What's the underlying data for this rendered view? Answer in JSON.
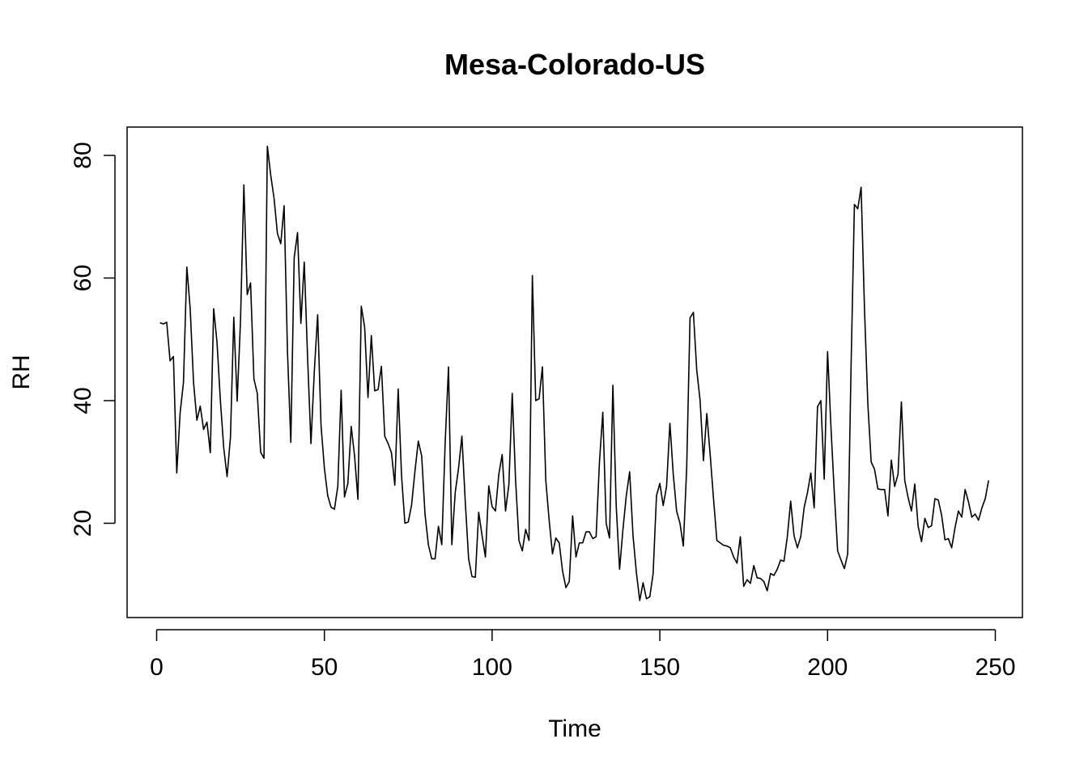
{
  "chart_data": {
    "type": "line",
    "title": "Mesa-Colorado-US",
    "xlabel": "Time",
    "ylabel": "RH",
    "xlim": [
      1,
      248
    ],
    "ylim": [
      7.4,
      81.5
    ],
    "xticks": [
      0,
      50,
      100,
      150,
      200,
      250
    ],
    "yticks": [
      20,
      40,
      60,
      80
    ],
    "grid": false,
    "line_color": "#000000",
    "series": [
      {
        "x": [
          1,
          2,
          3,
          4,
          5,
          6,
          7,
          8,
          9,
          10,
          11,
          12,
          13,
          14,
          15,
          16,
          17,
          18,
          19,
          20,
          21,
          22,
          23,
          24,
          25,
          26,
          27,
          28,
          29,
          30,
          31,
          32,
          33,
          34,
          35,
          36,
          37,
          38,
          39,
          40,
          41,
          42,
          43,
          44,
          45,
          46,
          47,
          48,
          49,
          50,
          51,
          52,
          53,
          54,
          55,
          56,
          57,
          58,
          59,
          60,
          61,
          62,
          63,
          64,
          65,
          66,
          67,
          68,
          69,
          70,
          71,
          72,
          73,
          74,
          75,
          76,
          77,
          78,
          79,
          80,
          81,
          82,
          83,
          84,
          85,
          86,
          87,
          88,
          89,
          90,
          91,
          92,
          93,
          94,
          95,
          96,
          97,
          98,
          99,
          100,
          101,
          102,
          103,
          104,
          105,
          106,
          107,
          108,
          109,
          110,
          111,
          112,
          113,
          114,
          115,
          116,
          117,
          118,
          119,
          120,
          121,
          122,
          123,
          124,
          125,
          126,
          127,
          128,
          129,
          130,
          131,
          132,
          133,
          134,
          135,
          136,
          137,
          138,
          139,
          140,
          141,
          142,
          143,
          144,
          145,
          146,
          147,
          148,
          149,
          150,
          151,
          152,
          153,
          154,
          155,
          156,
          157,
          158,
          159,
          160,
          161,
          162,
          163,
          164,
          165,
          166,
          167,
          168,
          169,
          170,
          171,
          172,
          173,
          174,
          175,
          176,
          177,
          178,
          179,
          180,
          181,
          182,
          183,
          184,
          185,
          186,
          187,
          188,
          189,
          190,
          191,
          192,
          193,
          194,
          195,
          196,
          197,
          198,
          199,
          200,
          201,
          202,
          203,
          204,
          205,
          206,
          207,
          208,
          209,
          210,
          211,
          212,
          213,
          214,
          215,
          216,
          217,
          218,
          219,
          220,
          221,
          222,
          223,
          224,
          225,
          226,
          227,
          228,
          229,
          230,
          231,
          232,
          233,
          234,
          235,
          236,
          237,
          238,
          239,
          240,
          241,
          242,
          243,
          244,
          245,
          246,
          247,
          248
        ],
        "values": [
          52.7,
          52.5,
          52.8,
          46.5,
          47.2,
          28.2,
          38.0,
          43.0,
          61.8,
          55.0,
          43.0,
          36.8,
          39.1,
          35.3,
          36.5,
          31.5,
          55.0,
          49.5,
          40.0,
          32.3,
          27.6,
          34.0,
          53.6,
          39.9,
          53.0,
          75.2,
          57.3,
          59.2,
          43.5,
          41.2,
          31.6,
          30.6,
          81.5,
          76.8,
          73.0,
          67.3,
          65.6,
          71.8,
          48.0,
          33.2,
          63.3,
          67.4,
          52.6,
          62.6,
          47.0,
          33.0,
          44.8,
          54.0,
          36.0,
          29.0,
          24.5,
          22.6,
          22.3,
          26.0,
          41.7,
          24.3,
          26.5,
          35.8,
          31.0,
          23.9,
          55.4,
          52.0,
          40.5,
          50.6,
          41.6,
          41.8,
          45.6,
          34.2,
          33.0,
          31.5,
          26.2,
          41.9,
          27.8,
          20.0,
          20.2,
          23.0,
          28.5,
          33.4,
          31.0,
          21.5,
          16.5,
          14.2,
          14.2,
          19.5,
          16.5,
          33.0,
          45.5,
          16.5,
          25.0,
          29.0,
          34.2,
          23.5,
          14.2,
          11.3,
          11.2,
          21.8,
          18.0,
          14.5,
          26.1,
          22.7,
          22.0,
          28.0,
          31.2,
          22.0,
          26.3,
          41.2,
          27.0,
          17.2,
          15.5,
          19.0,
          17.2,
          60.4,
          40.0,
          40.3,
          45.5,
          27.0,
          20.5,
          15.0,
          17.6,
          16.8,
          12.2,
          9.5,
          10.5,
          21.2,
          14.5,
          16.8,
          16.8,
          18.6,
          18.6,
          17.5,
          17.8,
          30.0,
          38.1,
          20.0,
          17.6,
          42.5,
          22.8,
          12.5,
          19.0,
          24.5,
          28.4,
          18.0,
          12.0,
          7.4,
          10.3,
          7.7,
          8.0,
          11.8,
          24.5,
          26.5,
          22.9,
          26.0,
          36.3,
          28.0,
          22.0,
          20.0,
          16.3,
          29.0,
          53.5,
          54.4,
          45.0,
          40.0,
          30.2,
          37.9,
          31.2,
          24.0,
          17.2,
          16.8,
          16.4,
          16.3,
          16.0,
          14.5,
          13.5,
          17.8,
          9.7,
          10.8,
          10.2,
          13.1,
          11.1,
          11.0,
          10.5,
          9.0,
          11.8,
          11.5,
          12.5,
          14.0,
          13.8,
          17.8,
          23.6,
          18.0,
          16.0,
          17.8,
          22.5,
          25.0,
          28.2,
          22.5,
          39.0,
          40.0,
          27.2,
          48.0,
          35.8,
          25.0,
          15.5,
          14.0,
          12.6,
          15.0,
          45.5,
          72.0,
          71.3,
          74.8,
          55.0,
          39.5,
          30.0,
          28.8,
          25.6,
          25.5,
          25.5,
          21.2,
          30.3,
          26.0,
          28.0,
          39.8,
          27.0,
          24.2,
          22.0,
          26.4,
          19.5,
          17.0,
          20.8,
          19.3,
          19.6,
          24.0,
          23.8,
          21.3,
          17.3,
          17.5,
          16.0,
          19.3,
          22.0,
          21.0,
          25.5,
          23.5,
          21.0,
          21.5,
          20.5,
          22.5,
          24.0,
          27.0
        ]
      }
    ]
  }
}
